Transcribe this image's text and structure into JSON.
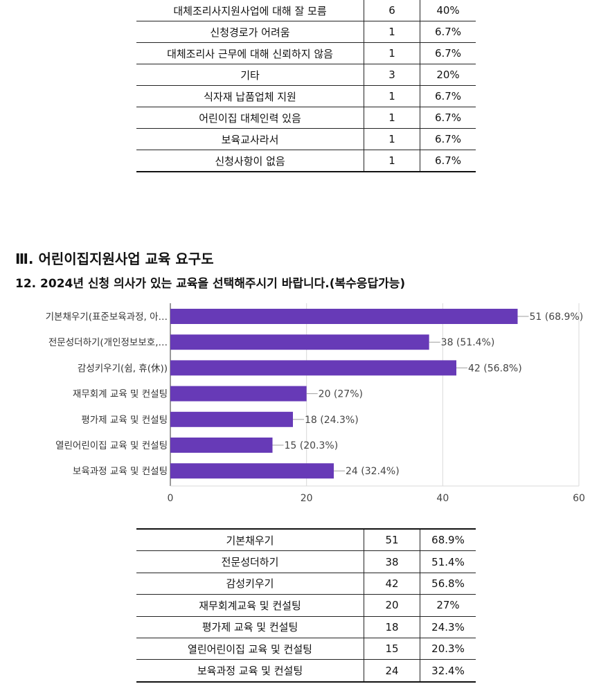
{
  "top_table": {
    "rows": [
      {
        "label": "대체조리사지원사업에 대해 잘 모름",
        "count": "6",
        "pct": "40%"
      },
      {
        "label": "신청경로가 어려움",
        "count": "1",
        "pct": "6.7%"
      },
      {
        "label": "대체조리사 근무에 대해 신뢰하지 않음",
        "count": "1",
        "pct": "6.7%"
      },
      {
        "label": "기타",
        "count": "3",
        "pct": "20%"
      },
      {
        "label": "식자재 납품업체 지원",
        "count": "1",
        "pct": "6.7%"
      },
      {
        "label": "어린이집 대체인력 있음",
        "count": "1",
        "pct": "6.7%"
      },
      {
        "label": "보육교사라서",
        "count": "1",
        "pct": "6.7%"
      },
      {
        "label": "신청사항이 없음",
        "count": "1",
        "pct": "6.7%"
      }
    ]
  },
  "section": {
    "title": "Ⅲ. 어린이집지원사업 교육 요구도",
    "question": "12. 2024년 신청 의사가 있는 교육을 선택해주시기 바랍니다.(복수응답가능)"
  },
  "chart_data": {
    "type": "bar",
    "orientation": "horizontal",
    "categories": [
      "기본채우기(표준보육과정, 아…",
      "전문성더하기(개인정보보호,…",
      "감성키우기(쉼, 휴(休))",
      "재무회계 교육 및 컨설팅",
      "평가제 교육 및 컨설팅",
      "열린어린이집 교육 및 컨설팅",
      "보육과정 교육 및 컨설팅"
    ],
    "values": [
      51,
      38,
      42,
      20,
      18,
      15,
      24
    ],
    "data_labels": [
      "51 (68.9%)",
      "38 (51.4%)",
      "42 (56.8%)",
      "20 (27%)",
      "18 (24.3%)",
      "15 (20.3%)",
      "24 (32.4%)"
    ],
    "xlim": [
      0,
      60
    ],
    "xticks": [
      0,
      20,
      40,
      60
    ],
    "xtick_labels": [
      "0",
      "20",
      "40",
      "60"
    ],
    "bar_color": "#673AB7",
    "grid": true
  },
  "bottom_table": {
    "rows": [
      {
        "label": "기본채우기",
        "count": "51",
        "pct": "68.9%"
      },
      {
        "label": "전문성더하기",
        "count": "38",
        "pct": "51.4%"
      },
      {
        "label": "감성키우기",
        "count": "42",
        "pct": "56.8%"
      },
      {
        "label": "재무회계교육 및 컨설팅",
        "count": "20",
        "pct": "27%"
      },
      {
        "label": "평가제 교육 및 컨설팅",
        "count": "18",
        "pct": "24.3%"
      },
      {
        "label": "열린어린이집 교육 및 컨설팅",
        "count": "15",
        "pct": "20.3%"
      },
      {
        "label": "보육과정 교육 및 컨설팅",
        "count": "24",
        "pct": "32.4%"
      }
    ]
  }
}
